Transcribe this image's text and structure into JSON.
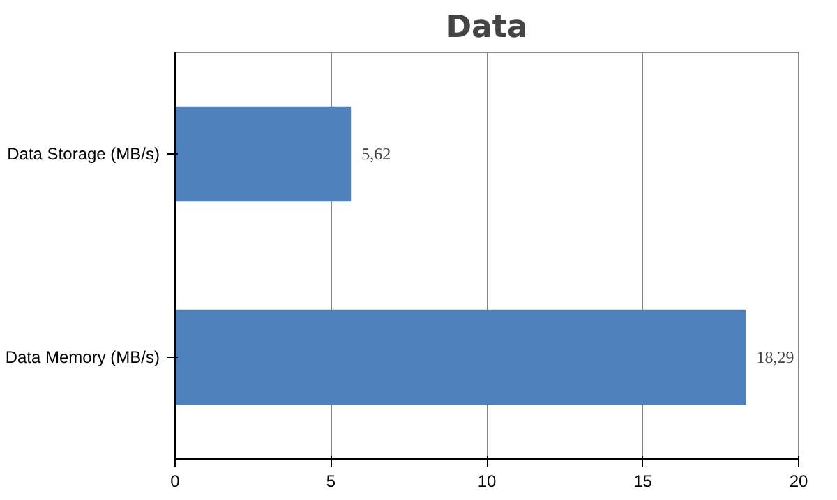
{
  "chart_data": {
    "type": "bar",
    "title": "Data",
    "orientation": "horizontal",
    "categories": [
      "Data Storage (MB/s)",
      "Data Memory (MB/s)"
    ],
    "values": [
      5.62,
      18.29
    ],
    "value_labels": [
      "5,62",
      "18,29"
    ],
    "color": "#4f81bd",
    "xlim": [
      0,
      20
    ],
    "xticks": [
      0,
      5,
      10,
      15,
      20
    ],
    "grid": "x"
  }
}
